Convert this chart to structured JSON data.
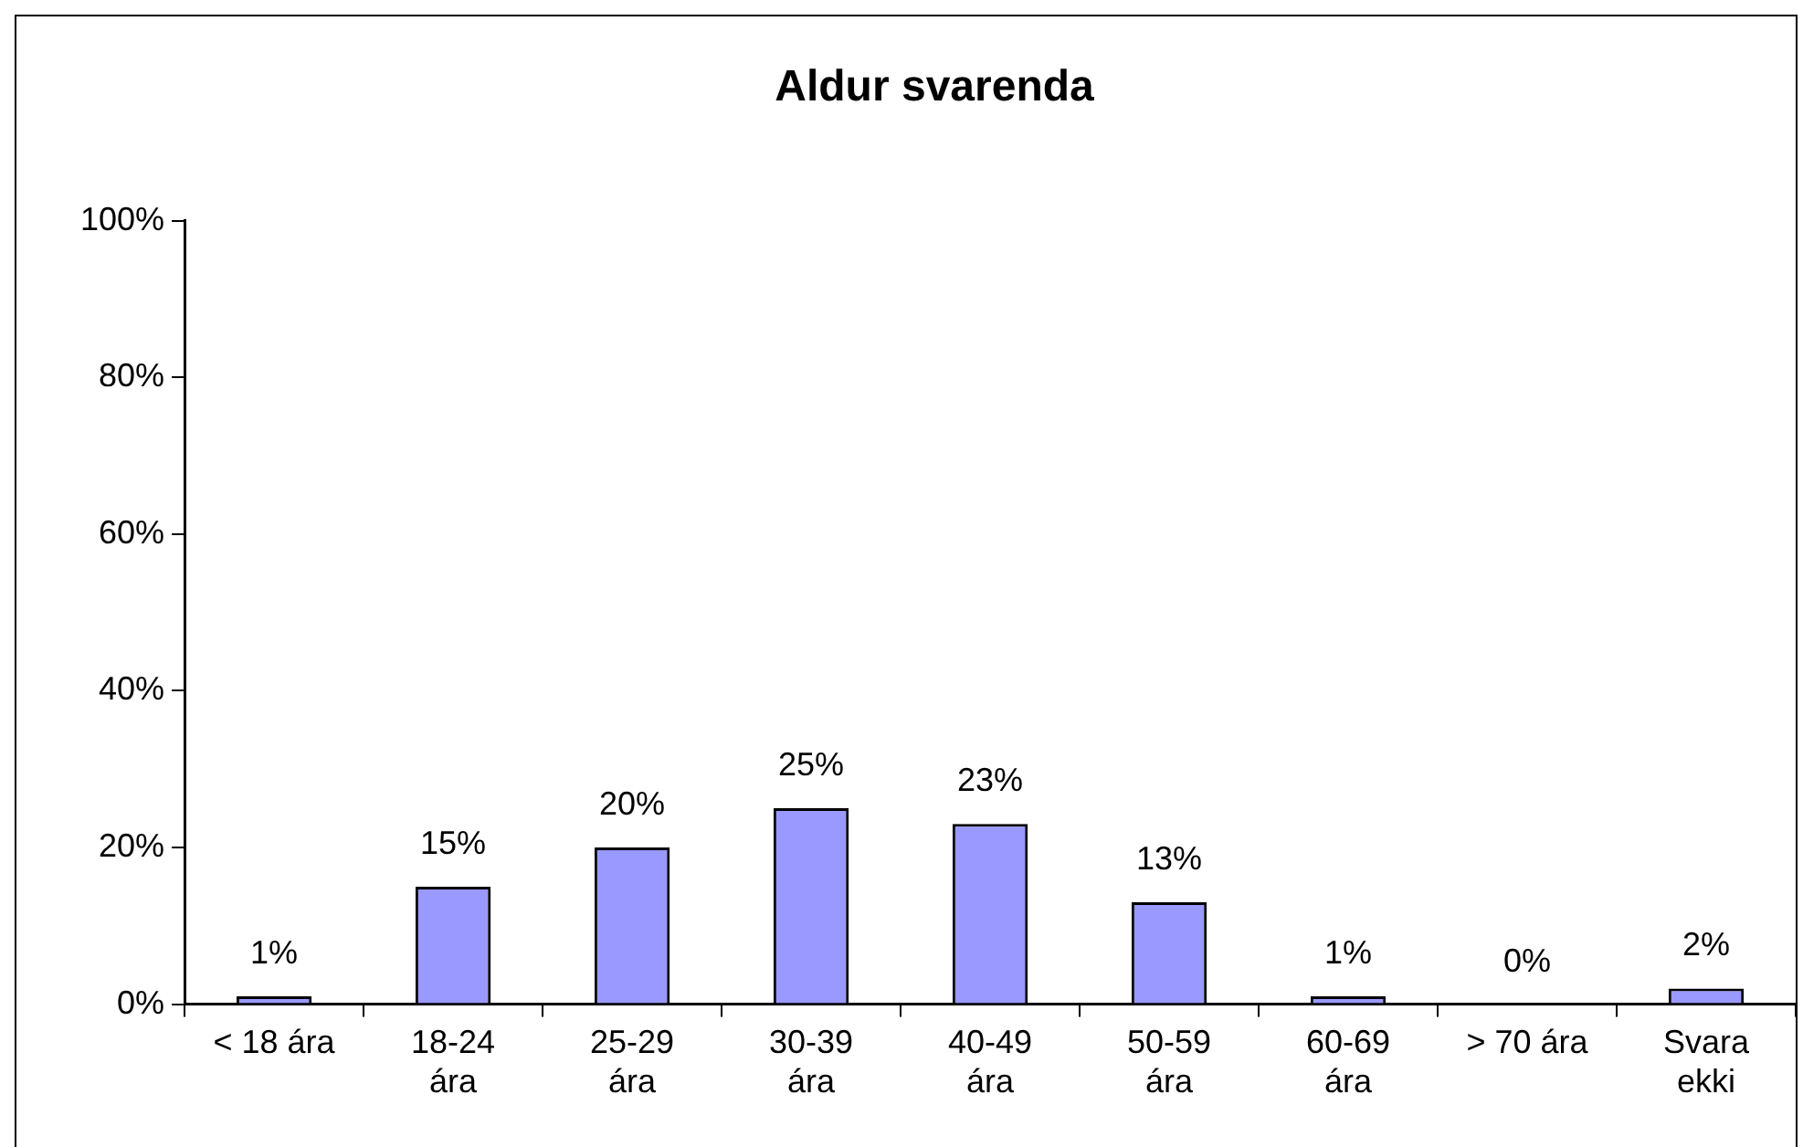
{
  "chart_data": {
    "type": "bar",
    "title": "Aldur svarenda",
    "categories": [
      "< 18 ára",
      "18-24\nára",
      "25-29\nára",
      "30-39\nára",
      "40-49\nára",
      "50-59\nára",
      "60-69\nára",
      "> 70 ára",
      "Svara\nekki"
    ],
    "values": [
      1,
      15,
      20,
      25,
      23,
      13,
      1,
      0,
      2
    ],
    "value_labels": [
      "1%",
      "15%",
      "20%",
      "25%",
      "23%",
      "13%",
      "1%",
      "0%",
      "2%"
    ],
    "color": "#9999ff",
    "ylim": [
      0,
      100
    ],
    "yticks": [
      {
        "value": 0,
        "label": "0%"
      },
      {
        "value": 20,
        "label": "20%"
      },
      {
        "value": 40,
        "label": "40%"
      },
      {
        "value": 60,
        "label": "60%"
      },
      {
        "value": 80,
        "label": "80%"
      },
      {
        "value": 100,
        "label": "100%"
      }
    ],
    "grid": false,
    "legend": false
  }
}
